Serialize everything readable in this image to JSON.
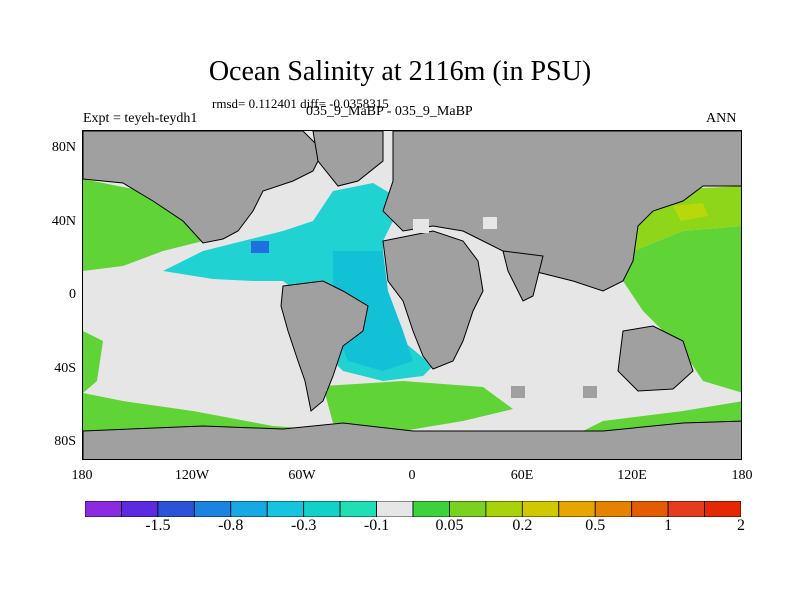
{
  "title": "Ocean Salinity at 2116m (in PSU)",
  "stats": "rmsd= 0.112401 diff= -0.0358315",
  "expt": "Expt = teyeh-teydh1",
  "subtitle": "035_9_MaBP - 035_9_MaBP",
  "season": "ANN",
  "lat_labels": [
    "80N",
    "40N",
    "0",
    "40S",
    "80S"
  ],
  "lon_labels": [
    "180",
    "120W",
    "60W",
    "0",
    "60E",
    "120E",
    "180"
  ],
  "colorbar": {
    "colors": [
      "#8a2be2",
      "#5a2be0",
      "#2a53d8",
      "#1a84e0",
      "#17a8e6",
      "#17c4e0",
      "#12d2c8",
      "#1ee0b4",
      "#e6e6e6",
      "#3cd23c",
      "#7ad21e",
      "#a8d20a",
      "#d2c800",
      "#e6a500",
      "#e68200",
      "#e65a00",
      "#e63c1e",
      "#e62800"
    ],
    "labels": [
      "-1.5",
      "-0.8",
      "-0.3",
      "-0.1",
      "0.05",
      "0.2",
      "0.5",
      "1",
      "2"
    ]
  },
  "map_colors": {
    "land": "#a0a0a0",
    "neutral_ocean": "#e6e6e6",
    "cyan": "#21d2d2",
    "teal": "#13c1d6",
    "blue": "#17a5e0",
    "dark_blue": "#1f6fe0",
    "green": "#60d437",
    "light_green": "#8dd61a",
    "yellow_green": "#b8d80a"
  }
}
